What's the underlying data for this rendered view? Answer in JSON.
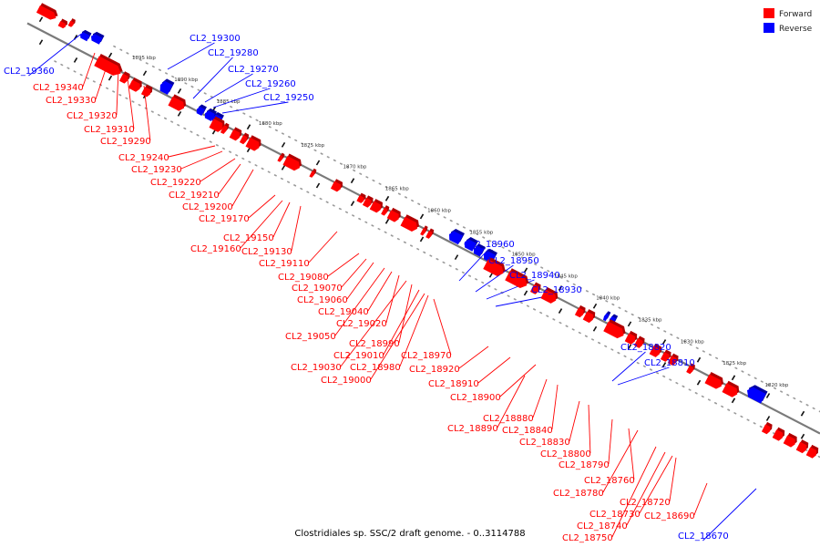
{
  "legend": {
    "forward": {
      "label": "Forward",
      "color": "#ff0000"
    },
    "reverse": {
      "label": "Reverse",
      "color": "#0000ff"
    }
  },
  "caption": "Clostridiales sp. SSC/2 draft genome. - 0..3114788",
  "chart_data": {
    "type": "linear-genome-map",
    "ticks": [
      "1895 kbp",
      "1890 kbp",
      "1885 kbp",
      "1880 kbp",
      "1875 kbp",
      "1870 kbp",
      "1865 kbp",
      "1860 kbp",
      "1855 kbp",
      "1850 kbp",
      "1845 kbp",
      "1840 kbp",
      "1835 kbp",
      "1830 kbp",
      "1825 kbp",
      "1820 kbp"
    ],
    "genes": [
      {
        "name": "CL2_19360",
        "strand": "reverse"
      },
      {
        "name": "CL2_19340",
        "strand": "forward"
      },
      {
        "name": "CL2_19330",
        "strand": "forward"
      },
      {
        "name": "CL2_19320",
        "strand": "forward"
      },
      {
        "name": "CL2_19310",
        "strand": "forward"
      },
      {
        "name": "CL2_19300",
        "strand": "reverse"
      },
      {
        "name": "CL2_19290",
        "strand": "forward"
      },
      {
        "name": "CL2_19280",
        "strand": "reverse"
      },
      {
        "name": "CL2_19270",
        "strand": "reverse"
      },
      {
        "name": "CL2_19260",
        "strand": "reverse"
      },
      {
        "name": "CL2_19250",
        "strand": "reverse"
      },
      {
        "name": "CL2_19240",
        "strand": "forward"
      },
      {
        "name": "CL2_19230",
        "strand": "forward"
      },
      {
        "name": "CL2_19220",
        "strand": "forward"
      },
      {
        "name": "CL2_19210",
        "strand": "forward"
      },
      {
        "name": "CL2_19200",
        "strand": "forward"
      },
      {
        "name": "CL2_19170",
        "strand": "forward"
      },
      {
        "name": "CL2_19160",
        "strand": "forward"
      },
      {
        "name": "CL2_19150",
        "strand": "forward"
      },
      {
        "name": "CL2_19130",
        "strand": "forward"
      },
      {
        "name": "CL2_19110",
        "strand": "forward"
      },
      {
        "name": "CL2_19080",
        "strand": "forward"
      },
      {
        "name": "CL2_19070",
        "strand": "forward"
      },
      {
        "name": "CL2_19060",
        "strand": "forward"
      },
      {
        "name": "CL2_19050",
        "strand": "forward"
      },
      {
        "name": "CL2_19040",
        "strand": "forward"
      },
      {
        "name": "CL2_19030",
        "strand": "forward"
      },
      {
        "name": "CL2_19020",
        "strand": "forward"
      },
      {
        "name": "CL2_19010",
        "strand": "forward"
      },
      {
        "name": "CL2_19000",
        "strand": "forward"
      },
      {
        "name": "CL2_18990",
        "strand": "forward"
      },
      {
        "name": "CL2_18980",
        "strand": "forward"
      },
      {
        "name": "CL2_18970",
        "strand": "forward"
      },
      {
        "name": "CL2_18960",
        "strand": "reverse"
      },
      {
        "name": "CL2_18950",
        "strand": "reverse"
      },
      {
        "name": "CL2_18940",
        "strand": "reverse"
      },
      {
        "name": "CL2_18930",
        "strand": "reverse"
      },
      {
        "name": "CL2_18920",
        "strand": "forward"
      },
      {
        "name": "CL2_18910",
        "strand": "forward"
      },
      {
        "name": "CL2_18900",
        "strand": "forward"
      },
      {
        "name": "CL2_18890",
        "strand": "forward"
      },
      {
        "name": "CL2_18880",
        "strand": "forward"
      },
      {
        "name": "CL2_18840",
        "strand": "forward"
      },
      {
        "name": "CL2_18830",
        "strand": "forward"
      },
      {
        "name": "CL2_18820",
        "strand": "reverse"
      },
      {
        "name": "CL2_18810",
        "strand": "reverse"
      },
      {
        "name": "CL2_18800",
        "strand": "forward"
      },
      {
        "name": "CL2_18790",
        "strand": "forward"
      },
      {
        "name": "CL2_18780",
        "strand": "forward"
      },
      {
        "name": "CL2_18760",
        "strand": "forward"
      },
      {
        "name": "CL2_18750",
        "strand": "forward"
      },
      {
        "name": "CL2_18740",
        "strand": "forward"
      },
      {
        "name": "CL2_18730",
        "strand": "forward"
      },
      {
        "name": "CL2_18720",
        "strand": "forward"
      },
      {
        "name": "CL2_18690",
        "strand": "forward"
      },
      {
        "name": "CL2_18670",
        "strand": "reverse"
      }
    ]
  }
}
